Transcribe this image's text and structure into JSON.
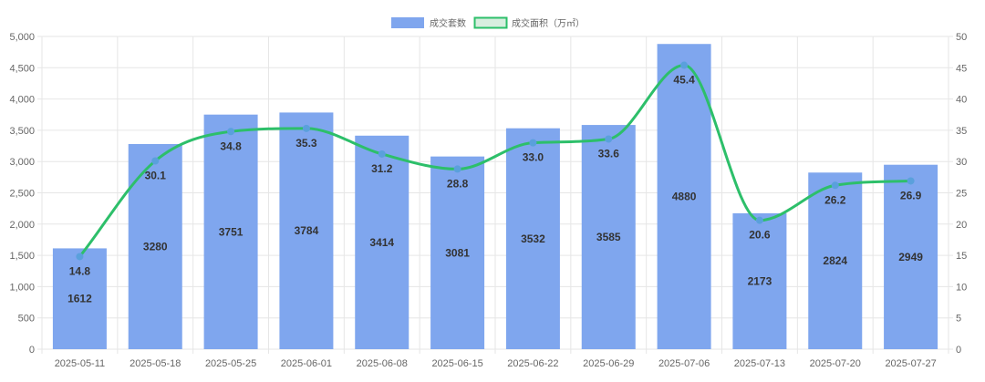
{
  "chart_data": {
    "type": "bar",
    "categories": [
      "2025-05-11",
      "2025-05-18",
      "2025-05-25",
      "2025-06-01",
      "2025-06-08",
      "2025-06-15",
      "2025-06-22",
      "2025-06-29",
      "2025-07-06",
      "2025-07-13",
      "2025-07-20",
      "2025-07-27"
    ],
    "series": [
      {
        "name": "成交套数",
        "type": "bar",
        "axis": "left",
        "color": "#7fa6ee",
        "values": [
          1612,
          3280,
          3751,
          3784,
          3414,
          3081,
          3532,
          3585,
          4880,
          2173,
          2824,
          2949
        ],
        "labels": [
          "1612",
          "3280",
          "3751",
          "3784",
          "3414",
          "3081",
          "3532",
          "3585",
          "4880",
          "2173",
          "2824",
          "2949"
        ]
      },
      {
        "name": "成交面积（万㎡）",
        "type": "line",
        "axis": "right",
        "color": "#2dbf6a",
        "point_color": "#5aa0dc",
        "values": [
          14.8,
          30.1,
          34.8,
          35.3,
          31.2,
          28.8,
          33.0,
          33.6,
          45.4,
          20.6,
          26.2,
          26.9
        ],
        "labels": [
          "14.8",
          "30.1",
          "34.8",
          "35.3",
          "31.2",
          "28.8",
          "33.0",
          "33.6",
          "45.4",
          "20.6",
          "26.2",
          "26.9"
        ]
      }
    ],
    "y_left": {
      "ylim": [
        0,
        5000
      ],
      "ticks": [
        0,
        500,
        1000,
        1500,
        2000,
        2500,
        3000,
        3500,
        4000,
        4500,
        5000
      ],
      "tick_labels": [
        "0",
        "500",
        "1,000",
        "1,500",
        "2,000",
        "2,500",
        "3,000",
        "3,500",
        "4,000",
        "4,500",
        "5,000"
      ]
    },
    "y_right": {
      "ylim": [
        0,
        50
      ],
      "ticks": [
        0,
        5,
        10,
        15,
        20,
        25,
        30,
        35,
        40,
        45,
        50
      ],
      "tick_labels": [
        "0",
        "5",
        "10",
        "15",
        "20",
        "25",
        "30",
        "35",
        "40",
        "45",
        "50"
      ]
    },
    "grid": true,
    "legend": "top-center",
    "title": "",
    "xlabel": "",
    "ylabel": ""
  }
}
